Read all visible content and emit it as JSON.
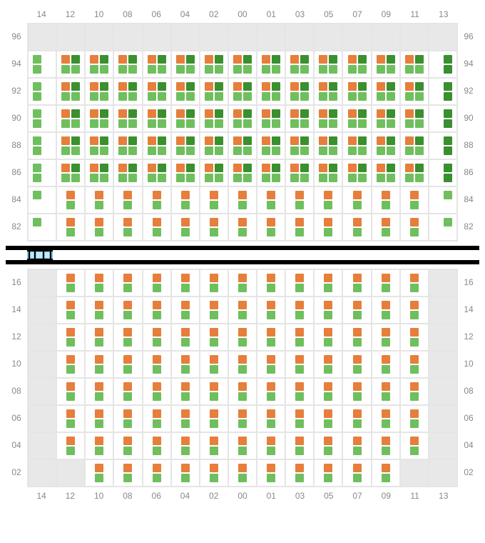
{
  "colors": {
    "orange": "#e67e3c",
    "lightGreen": "#6fbf5e",
    "darkGreen": "#3a8f2f",
    "shaded": "#e8e8e8",
    "border": "#e5e5e5",
    "text": "#888888",
    "dividerBg": "#000000",
    "dividerSeg": "#c5e8f7",
    "dividerSegBorder": "#7ec5e0"
  },
  "columns": [
    "14",
    "12",
    "10",
    "08",
    "06",
    "04",
    "02",
    "00",
    "01",
    "03",
    "05",
    "07",
    "09",
    "11",
    "13"
  ],
  "topRows": [
    "96",
    "94",
    "92",
    "90",
    "88",
    "86",
    "84",
    "82"
  ],
  "bottomRows": [
    "16",
    "14",
    "12",
    "10",
    "08",
    "06",
    "04",
    "02"
  ],
  "patterns": {
    "empty": [],
    "four_old": [
      [
        "orange",
        "darkGreen"
      ],
      [
        "lightGreen",
        "lightGreen"
      ]
    ],
    "four_old_end_left": [
      [
        "lightGreen",
        null
      ],
      [
        "lightGreen",
        null
      ]
    ],
    "four_old_end_right": [
      [
        null,
        "darkGreen"
      ],
      [
        null,
        "darkGreen"
      ]
    ],
    "vert_og": [
      "orange",
      "lightGreen"
    ],
    "vert_g": [
      "lightGreen",
      null
    ],
    "vert_g_right": [
      null,
      "lightGreen"
    ]
  },
  "topGrid": [
    [
      "shaded",
      "shaded",
      "shaded",
      "shaded",
      "shaded",
      "shaded",
      "shaded",
      "shaded",
      "shaded",
      "shaded",
      "shaded",
      "shaded",
      "shaded",
      "shaded",
      "shaded"
    ],
    [
      "eL",
      "f",
      "f",
      "f",
      "f",
      "f",
      "f",
      "f",
      "f",
      "f",
      "f",
      "f",
      "f",
      "f",
      "eR"
    ],
    [
      "eL",
      "f",
      "f",
      "f",
      "f",
      "f",
      "f",
      "f",
      "f",
      "f",
      "f",
      "f",
      "f",
      "f",
      "eR"
    ],
    [
      "eL",
      "f",
      "f",
      "f",
      "f",
      "f",
      "f",
      "f",
      "f",
      "f",
      "f",
      "f",
      "f",
      "f",
      "eR"
    ],
    [
      "eL",
      "f",
      "f",
      "f",
      "f",
      "f",
      "f",
      "f",
      "f",
      "f",
      "f",
      "f",
      "f",
      "f",
      "eR"
    ],
    [
      "eL",
      "f",
      "f",
      "f",
      "f",
      "f",
      "f",
      "f",
      "f",
      "f",
      "f",
      "f",
      "f",
      "f",
      "eR"
    ],
    [
      "vgL",
      "vog",
      "vog",
      "vog",
      "vog",
      "vog",
      "vog",
      "vog",
      "vog",
      "vog",
      "vog",
      "vog",
      "vog",
      "vog",
      "vgR"
    ],
    [
      "vgL",
      "vog",
      "vog",
      "vog",
      "vog",
      "vog",
      "vog",
      "vog",
      "vog",
      "vog",
      "vog",
      "vog",
      "vog",
      "vog",
      "vgR"
    ]
  ],
  "bottomGrid": [
    [
      "shaded",
      "vog",
      "vog",
      "vog",
      "vog",
      "vog",
      "vog",
      "vog",
      "vog",
      "vog",
      "vog",
      "vog",
      "vog",
      "vog",
      "shaded"
    ],
    [
      "shaded",
      "vog",
      "vog",
      "vog",
      "vog",
      "vog",
      "vog",
      "vog",
      "vog",
      "vog",
      "vog",
      "vog",
      "vog",
      "vog",
      "shaded"
    ],
    [
      "shaded",
      "vog",
      "vog",
      "vog",
      "vog",
      "vog",
      "vog",
      "vog",
      "vog",
      "vog",
      "vog",
      "vog",
      "vog",
      "vog",
      "shaded"
    ],
    [
      "shaded",
      "vog",
      "vog",
      "vog",
      "vog",
      "vog",
      "vog",
      "vog",
      "vog",
      "vog",
      "vog",
      "vog",
      "vog",
      "vog",
      "shaded"
    ],
    [
      "shaded",
      "vog",
      "vog",
      "vog",
      "vog",
      "vog",
      "vog",
      "vog",
      "vog",
      "vog",
      "vog",
      "vog",
      "vog",
      "vog",
      "shaded"
    ],
    [
      "shaded",
      "vog",
      "vog",
      "vog",
      "vog",
      "vog",
      "vog",
      "vog",
      "vog",
      "vog",
      "vog",
      "vog",
      "vog",
      "vog",
      "shaded"
    ],
    [
      "shaded",
      "vog",
      "vog",
      "vog",
      "vog",
      "vog",
      "vog",
      "vog",
      "vog",
      "vog",
      "vog",
      "vog",
      "vog",
      "vog",
      "shaded"
    ],
    [
      "shaded",
      "shaded",
      "vog",
      "vog",
      "vog",
      "vog",
      "vog",
      "vog",
      "vog",
      "vog",
      "vog",
      "vog",
      "vog",
      "shaded",
      "shaded"
    ]
  ],
  "dividerSegments": 5
}
